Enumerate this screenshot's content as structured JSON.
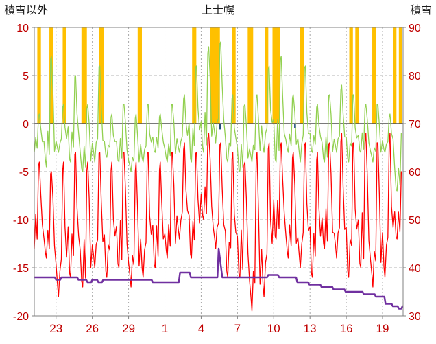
{
  "header": {
    "left_label": "積雪以外",
    "title": "上士幌",
    "right_label": "積雪"
  },
  "chart_data": {
    "type": "line",
    "title": "上士幌",
    "left_axis": {
      "label": "積雪以外",
      "min": -20,
      "max": 10,
      "ticks": [
        10,
        5,
        0,
        -5,
        -10,
        -15,
        -20
      ]
    },
    "right_axis": {
      "label": "積雪",
      "min": 30,
      "max": 90,
      "ticks": [
        90,
        80,
        70,
        60,
        50,
        40,
        30
      ],
      "note_mapping": "right_value = left_value * 2 + 70"
    },
    "x_axis": {
      "start_day": 21.2,
      "end_day": 51.7,
      "tick_days": [
        23,
        26,
        29,
        32,
        35,
        38,
        41,
        44,
        47,
        50
      ],
      "tick_labels": [
        "23",
        "26",
        "29",
        "1",
        "4",
        "7",
        "10",
        "13",
        "16",
        "19"
      ],
      "grid": "dashed"
    },
    "colors": {
      "bars": "#FFC000",
      "temp_green": "#92D050",
      "temp_red": "#FF0000",
      "snow_purple": "#7030A0",
      "precip_blue": "#1F4E79",
      "grid": "#B3B3B3",
      "vgrid": "#A6A6A6",
      "zero_line": "#4D4D4D",
      "frame": "#808080",
      "axis_labels": "#C00000"
    },
    "sunshine_bars": {
      "value_top": 10,
      "value_bottom": 0,
      "intervals": [
        [
          21.45,
          21.75
        ],
        [
          22.45,
          22.75
        ],
        [
          23.55,
          23.85
        ],
        [
          25.1,
          25.55
        ],
        [
          26.55,
          26.95
        ],
        [
          29.75,
          30.1
        ],
        [
          34.25,
          34.6
        ],
        [
          35.75,
          36.55
        ],
        [
          37.55,
          37.85
        ],
        [
          38.85,
          39.3
        ],
        [
          40.25,
          40.55
        ],
        [
          40.9,
          41.55
        ],
        [
          43.15,
          43.5
        ],
        [
          47.25,
          47.55
        ],
        [
          47.75,
          48.05
        ],
        [
          49.15,
          49.45
        ],
        [
          50.85,
          51.15
        ],
        [
          51.35,
          51.6
        ]
      ]
    },
    "series": {
      "green_temp_daily": {
        "days": [
          21,
          22,
          23,
          24,
          25,
          26,
          27,
          28,
          29,
          30,
          31,
          32,
          33,
          34,
          35,
          36,
          37,
          38,
          39,
          40,
          41,
          42,
          43,
          44,
          45,
          46,
          47,
          48,
          49,
          50,
          51
        ],
        "min": [
          -3,
          -4.5,
          -3,
          -4,
          -5,
          -4,
          -3.5,
          -4,
          -5,
          -4,
          -3,
          -4,
          -3,
          -4,
          -3,
          -2,
          -4,
          -5,
          -4,
          -3,
          -4,
          -3,
          -4,
          -3,
          -4,
          -3,
          -4,
          -3,
          -4,
          -3,
          -7
        ],
        "max": [
          1,
          7,
          2,
          5,
          2,
          6,
          1,
          2,
          1,
          2,
          1,
          2,
          3,
          6,
          8,
          8.5,
          3,
          2,
          3,
          6,
          7,
          3,
          6,
          2,
          3,
          4,
          3,
          2,
          2,
          1,
          -1
        ]
      },
      "red_temp_daily": {
        "days": [
          21,
          22,
          23,
          24,
          25,
          26,
          27,
          28,
          29,
          30,
          31,
          32,
          33,
          34,
          35,
          36,
          37,
          38,
          39,
          40,
          41,
          42,
          43,
          44,
          45,
          46,
          47,
          48,
          49,
          50,
          51
        ],
        "max": [
          -4,
          -5,
          -4,
          -3,
          -4,
          -3,
          -4,
          -3,
          -4,
          -3,
          -4,
          -3,
          -2,
          -3,
          -1,
          -2,
          -3,
          -4,
          -3,
          -2,
          -2,
          -3,
          -2,
          -3,
          -2,
          -1,
          -2,
          -1,
          -2,
          -1,
          -5
        ],
        "min": [
          -13,
          -14,
          -18,
          -16,
          -17,
          -15,
          -16,
          -15,
          -17,
          -16,
          -15,
          -14,
          -12,
          -14,
          -10,
          -13,
          -16,
          -16,
          -19.5,
          -18,
          -12,
          -14,
          -15,
          -16,
          -13,
          -14,
          -16,
          -15,
          -17,
          -16,
          -12
        ]
      },
      "snow_depth_cm": {
        "points": [
          [
            21.2,
            38
          ],
          [
            22.9,
            38
          ],
          [
            23.0,
            37.5
          ],
          [
            23.35,
            37.5
          ],
          [
            23.45,
            38
          ],
          [
            24.75,
            38
          ],
          [
            24.85,
            37.5
          ],
          [
            25.5,
            37.5
          ],
          [
            25.6,
            37
          ],
          [
            25.9,
            37
          ],
          [
            26.0,
            37.5
          ],
          [
            26.4,
            37.5
          ],
          [
            26.5,
            37
          ],
          [
            26.8,
            37
          ],
          [
            26.9,
            37.5
          ],
          [
            30.9,
            37.5
          ],
          [
            31.0,
            37
          ],
          [
            33.15,
            37
          ],
          [
            33.25,
            39
          ],
          [
            34.05,
            39
          ],
          [
            34.15,
            38
          ],
          [
            36.35,
            38
          ],
          [
            36.45,
            44
          ],
          [
            36.65,
            40
          ],
          [
            36.75,
            38
          ],
          [
            40.45,
            38
          ],
          [
            40.55,
            38.5
          ],
          [
            41.35,
            38.5
          ],
          [
            41.45,
            38
          ],
          [
            42.85,
            38
          ],
          [
            42.95,
            37
          ],
          [
            43.85,
            37
          ],
          [
            43.95,
            36.5
          ],
          [
            44.85,
            36.5
          ],
          [
            44.95,
            36
          ],
          [
            45.85,
            36
          ],
          [
            45.95,
            35.5
          ],
          [
            46.85,
            35.5
          ],
          [
            46.95,
            35
          ],
          [
            48.35,
            35
          ],
          [
            48.45,
            34.5
          ],
          [
            49.35,
            34.5
          ],
          [
            49.45,
            34
          ],
          [
            50.15,
            34
          ],
          [
            50.25,
            32.5
          ],
          [
            50.75,
            32.5
          ],
          [
            50.85,
            32
          ],
          [
            51.25,
            32
          ],
          [
            51.35,
            31.5
          ],
          [
            51.55,
            31.5
          ],
          [
            51.65,
            32
          ],
          [
            51.7,
            32
          ]
        ]
      },
      "precip_marks": [
        [
          36.55,
          -0.6
        ],
        [
          42.75,
          -0.5
        ]
      ]
    }
  }
}
